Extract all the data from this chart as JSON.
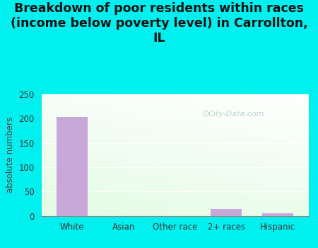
{
  "title": "Breakdown of poor residents within races\n(income below poverty level) in Carrollton,\nIL",
  "categories": [
    "White",
    "Asian",
    "Other race",
    "2+ races",
    "Hispanic"
  ],
  "values": [
    203,
    0,
    0,
    14,
    5
  ],
  "bar_color": "#c8a8d8",
  "ylabel": "absolute numbers",
  "ylim": [
    0,
    250
  ],
  "yticks": [
    0,
    50,
    100,
    150,
    200,
    250
  ],
  "bg_color": "#00f0f0",
  "watermark": "City-Data.com",
  "title_fontsize": 12.5,
  "ylabel_fontsize": 8.5,
  "tick_fontsize": 8.5,
  "grad_top": "#f5fef5",
  "grad_bottom": "#d8f0d0",
  "grad_right": "#ffffff"
}
